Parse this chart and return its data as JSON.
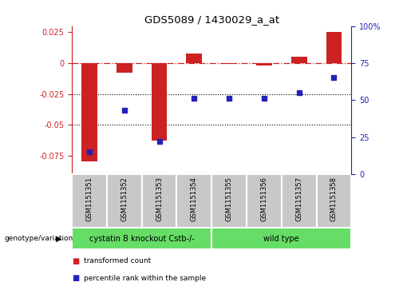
{
  "title": "GDS5089 / 1430029_a_at",
  "samples": [
    "GSM1151351",
    "GSM1151352",
    "GSM1151353",
    "GSM1151354",
    "GSM1151355",
    "GSM1151356",
    "GSM1151357",
    "GSM1151358"
  ],
  "transformed_count": [
    -0.08,
    -0.008,
    -0.063,
    0.008,
    -0.001,
    -0.002,
    0.005,
    0.025
  ],
  "percentile_rank": [
    15,
    43,
    22,
    51,
    51,
    51,
    55,
    65
  ],
  "bar_color": "#cc2222",
  "dot_color": "#2222bb",
  "ylim_left": [
    -0.09,
    0.03
  ],
  "ylim_right": [
    0,
    100
  ],
  "yticks_left": [
    -0.075,
    -0.05,
    -0.025,
    0,
    0.025
  ],
  "yticks_right": [
    0,
    25,
    50,
    75,
    100
  ],
  "dotted_lines": [
    -0.025,
    -0.05
  ],
  "group1_label": "cystatin B knockout Cstb-/-",
  "group2_label": "wild type",
  "group1_indices": [
    0,
    1,
    2,
    3
  ],
  "group2_indices": [
    4,
    5,
    6,
    7
  ],
  "group_color": "#66dd66",
  "sample_bg_color": "#c8c8c8",
  "legend_bar_label": "transformed count",
  "legend_dot_label": "percentile rank within the sample",
  "genotype_label": "genotype/variation"
}
